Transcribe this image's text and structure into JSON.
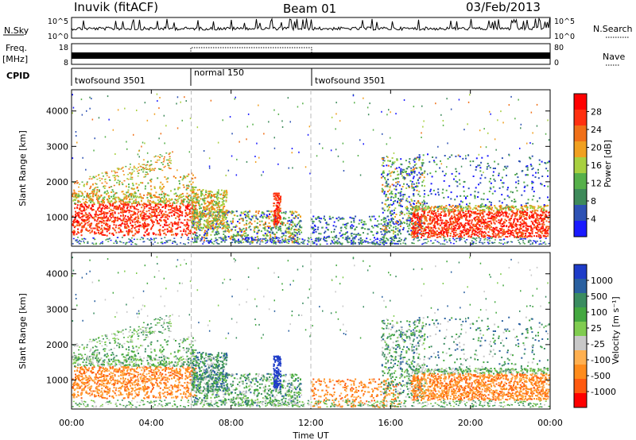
{
  "header": {
    "station": "Inuvik (fitACF)",
    "beam": "Beam 01",
    "date": "03/Feb/2013"
  },
  "nsky_panel": {
    "left_label": "N.Sky",
    "right_label": "N.Search",
    "left_ticks": [
      "10^5",
      "10^0"
    ],
    "right_ticks": [
      "10^5",
      "10^0"
    ]
  },
  "freq_panel": {
    "left_label": "Freq.",
    "left_units": "[MHz]",
    "right_label": "Nave",
    "left_ticks": [
      "18",
      "8"
    ],
    "right_ticks": [
      "80",
      "0"
    ]
  },
  "cpid_panel": {
    "label": "CPID",
    "segments": [
      {
        "name": "twofsound 3501",
        "start": 0,
        "end": 6
      },
      {
        "name": "normal 150",
        "start": 6,
        "end": 12
      },
      {
        "name": "twofsound 3501",
        "start": 12,
        "end": 24
      }
    ]
  },
  "x_axis": {
    "label": "Time UT",
    "ticks": [
      "00:00",
      "04:00",
      "08:00",
      "12:00",
      "16:00",
      "20:00",
      "00:00"
    ]
  },
  "colors": {
    "power": [
      "#1a1aff",
      "#2e52b4",
      "#3e8a5a",
      "#56b04a",
      "#a8d040",
      "#f0a020",
      "#f07018",
      "#ff3010",
      "#ff0000"
    ],
    "velocity": [
      "#ff0000",
      "#ff5a10",
      "#ff8c1c",
      "#ffb050",
      "#c8c8c8",
      "#80cc50",
      "#44a840",
      "#3a8c60",
      "#2a60a0",
      "#1e3cc8"
    ]
  },
  "chart_data": [
    {
      "type": "heatmap",
      "panel": "power",
      "ylabel": "Slant Range [km]",
      "xlabel": "",
      "xlim": [
        0,
        24
      ],
      "ylim": [
        180,
        4600
      ],
      "yticks": [
        1000,
        2000,
        3000,
        4000
      ],
      "colorbar": {
        "label": "Power [dB]",
        "ticks": [
          "4",
          "8",
          "12",
          "16",
          "20",
          "24",
          "28"
        ]
      }
    },
    {
      "type": "heatmap",
      "panel": "velocity",
      "ylabel": "Slant Range [km]",
      "xlabel": "Time UT",
      "xlim": [
        0,
        24
      ],
      "ylim": [
        180,
        4600
      ],
      "yticks": [
        1000,
        2000,
        3000,
        4000
      ],
      "colorbar": {
        "label": "Velocity [m s⁻¹]",
        "ticks": [
          "1000",
          "500",
          "100",
          "25",
          "-25",
          "-100",
          "-500",
          "-1000"
        ]
      }
    }
  ]
}
